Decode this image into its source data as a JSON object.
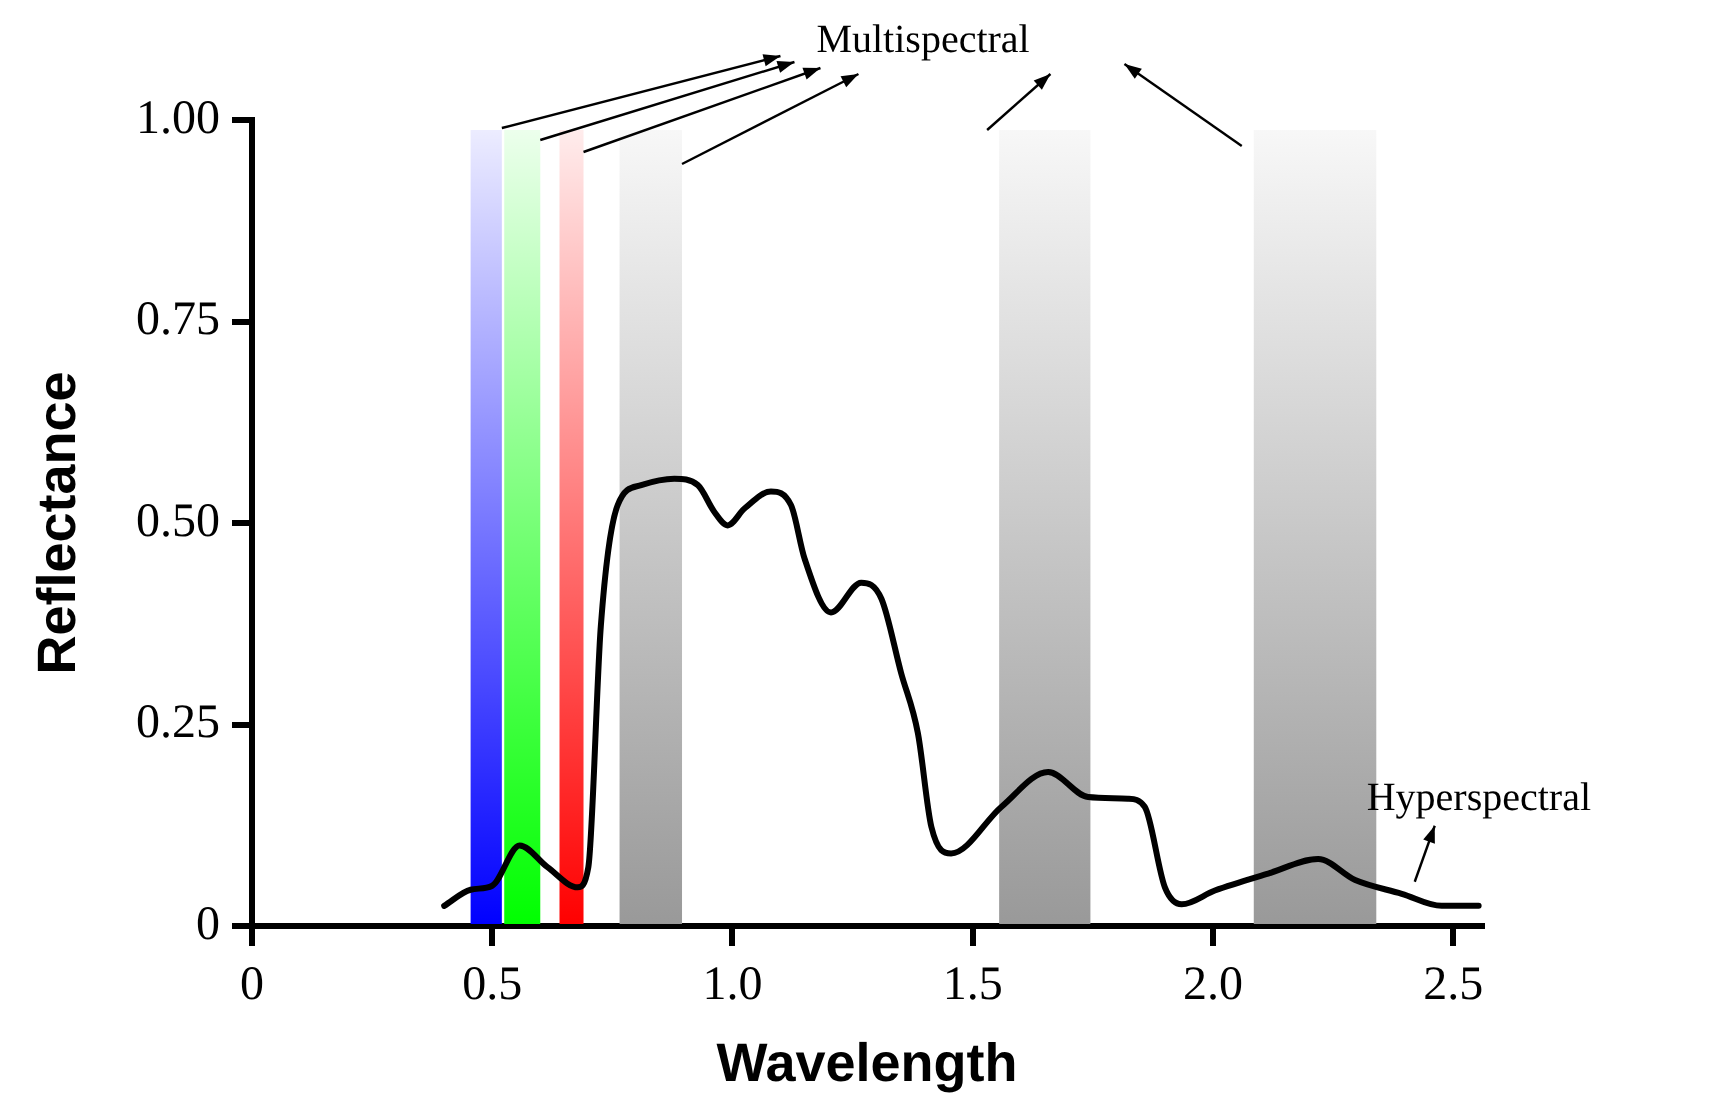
{
  "chart_data": {
    "type": "line",
    "xlabel": "Wavelength",
    "ylabel": "Reflectance",
    "xlim": [
      0,
      2.56
    ],
    "ylim": [
      0,
      1
    ],
    "xticks": [
      0,
      0.5,
      {
        "value": 1,
        "label": "1.0"
      },
      1.5,
      {
        "value": 2,
        "label": "2.0"
      },
      2.5
    ],
    "yticks": [
      0,
      0.25,
      {
        "value": 0.5,
        "label": "0.50"
      },
      0.75,
      {
        "value": 1,
        "label": "1.00"
      }
    ],
    "grid": false,
    "legend": false,
    "marker": "none",
    "line_style": "solid",
    "series": [
      {
        "color": "#000000",
        "x": [
          0.4,
          0.455,
          0.5,
          0.557,
          0.615,
          0.678,
          0.7,
          0.726,
          0.761,
          0.81,
          0.879,
          0.928,
          0.962,
          0.99,
          1.025,
          1.08,
          1.122,
          1.15,
          1.205,
          1.268,
          1.31,
          1.351,
          1.386,
          1.414,
          1.455,
          1.56,
          1.657,
          1.74,
          1.823,
          1.858,
          1.9,
          1.935,
          2.004,
          2.115,
          2.219,
          2.296,
          2.393,
          2.476,
          2.553
        ],
        "values": [
          0.025,
          0.045,
          0.05,
          0.1,
          0.073,
          0.048,
          0.073,
          0.372,
          0.522,
          0.547,
          0.555,
          0.547,
          0.514,
          0.497,
          0.518,
          0.539,
          0.522,
          0.456,
          0.389,
          0.426,
          0.406,
          0.314,
          0.239,
          0.123,
          0.09,
          0.148,
          0.191,
          0.16,
          0.158,
          0.148,
          0.048,
          0.027,
          0.044,
          0.065,
          0.083,
          0.057,
          0.04,
          0.025,
          0.025
        ]
      }
    ],
    "bands": [
      {
        "axis": "x",
        "from": 0.455,
        "to": 0.52,
        "color": "#0000ff"
      },
      {
        "axis": "x",
        "from": 0.525,
        "to": 0.6,
        "color": "#00ff00"
      },
      {
        "axis": "x",
        "from": 0.64,
        "to": 0.69,
        "color": "#ff0000"
      },
      {
        "axis": "x",
        "from": 0.765,
        "to": 0.895,
        "color": "#999999"
      },
      {
        "axis": "x",
        "from": 1.555,
        "to": 1.745,
        "color": "#999999"
      },
      {
        "axis": "x",
        "from": 2.085,
        "to": 2.34,
        "color": "#999999"
      }
    ],
    "annotations": [
      "Multispectral",
      {
        "text": "Hyperspectral",
        "x": 2.42,
        "y": 0.04
      }
    ]
  }
}
